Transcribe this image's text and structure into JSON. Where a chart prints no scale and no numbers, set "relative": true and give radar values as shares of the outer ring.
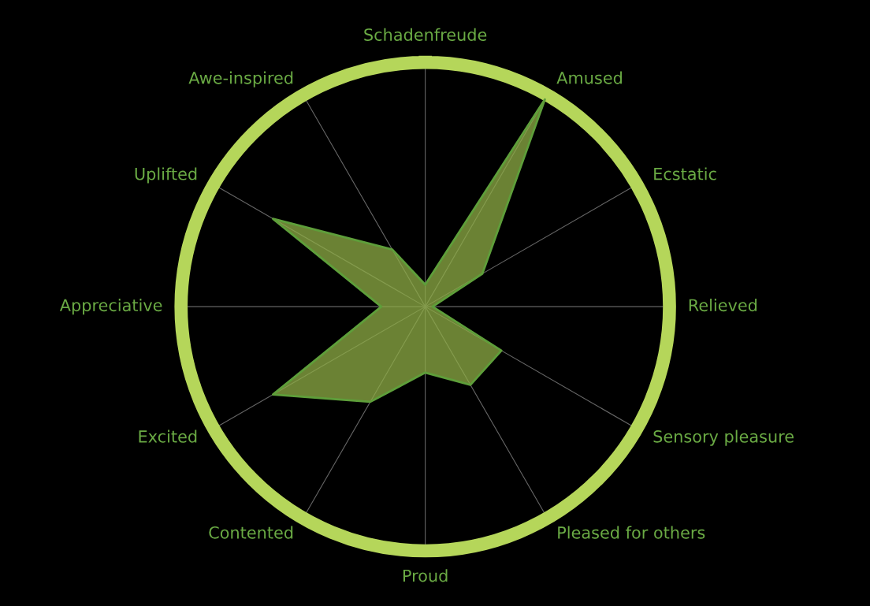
{
  "chart_data": {
    "type": "radar",
    "relative": true,
    "grid": "x",
    "categories": [
      "Schadenfreude",
      "Amused",
      "Ecstatic",
      "Relieved",
      "Sensory pleasure",
      "Pleased for others",
      "Proud",
      "Contented",
      "Excited",
      "Appreciative",
      "Uplifted",
      "Awe-inspired"
    ],
    "series": [
      {
        "color": "#8fae45",
        "values": [
          0.09,
          0.98,
          0.27,
          0.03,
          0.36,
          0.37,
          0.27,
          0.45,
          0.72,
          0.18,
          0.72,
          0.27
        ]
      }
    ]
  }
}
